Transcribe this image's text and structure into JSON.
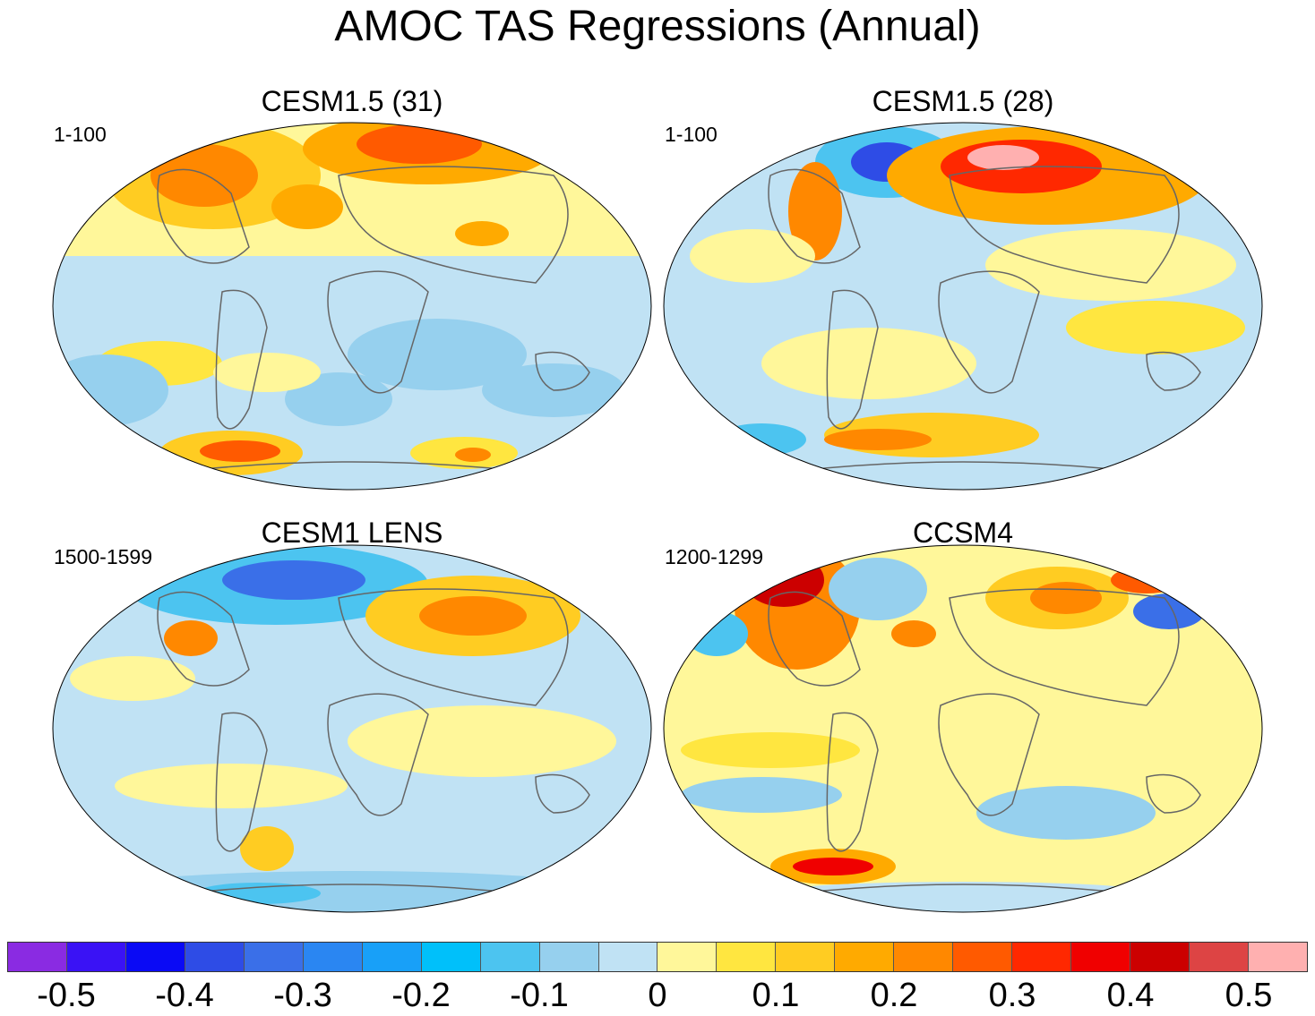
{
  "title": "AMOC TAS Regressions (Annual)",
  "panels": [
    {
      "title": "CESM1.5 (31)",
      "period": "1-100"
    },
    {
      "title": "CESM1.5 (28)",
      "period": "1-100"
    },
    {
      "title": "CESM1 LENS",
      "period": "1500-1599"
    },
    {
      "title": "CCSM4",
      "period": "1200-1299"
    }
  ],
  "colorbar": {
    "colors": [
      "#8a2be2",
      "#3a12f5",
      "#0a0af5",
      "#2e4ce6",
      "#3a6fe8",
      "#2a86f2",
      "#18a0f8",
      "#00c0fa",
      "#4cc4f0",
      "#96d0ee",
      "#c0e2f4",
      "#fff79a",
      "#ffe640",
      "#ffcc22",
      "#ffaa00",
      "#ff8800",
      "#ff5a00",
      "#ff2800",
      "#f00000",
      "#cc0000",
      "#dd4444",
      "#ffb0b0"
    ],
    "tick_labels": [
      "-0.5",
      "-0.4",
      "-0.3",
      "-0.2",
      "-0.1",
      "0",
      "0.1",
      "0.2",
      "0.3",
      "0.4",
      "0.5"
    ]
  }
}
